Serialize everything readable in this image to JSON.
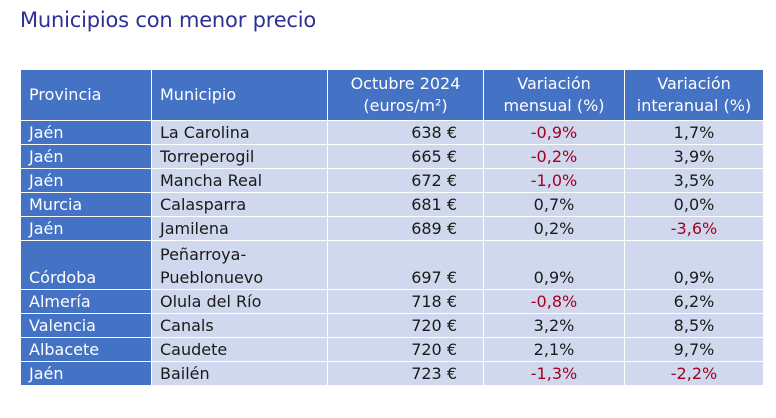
{
  "title": "Municipios con menor precio",
  "headers": {
    "provincia": "Provincia",
    "municipio": "Municipio",
    "precio_line1": "Octubre 2024",
    "precio_line2": "(euros/m²)",
    "mensual_line1": "Variación",
    "mensual_line2": "mensual (%)",
    "interanual_line1": "Variación",
    "interanual_line2": "interanual (%)"
  },
  "rows": [
    {
      "provincia": "Jaén",
      "municipio": "La Carolina",
      "precio": "638 €",
      "mensual": "-0,9%",
      "interanual": "1,7%"
    },
    {
      "provincia": "Jaén",
      "municipio": "Torreperogil",
      "precio": "665 €",
      "mensual": "-0,2%",
      "interanual": "3,9%"
    },
    {
      "provincia": "Jaén",
      "municipio": "Mancha Real",
      "precio": "672 €",
      "mensual": "-1,0%",
      "interanual": "3,5%"
    },
    {
      "provincia": "Murcia",
      "municipio": "Calasparra",
      "precio": "681 €",
      "mensual": "0,7%",
      "interanual": "0,0%"
    },
    {
      "provincia": "Jaén",
      "municipio": "Jamilena",
      "precio": "689 €",
      "mensual": "0,2%",
      "interanual": "-3,6%"
    },
    {
      "provincia": "Córdoba",
      "municipio_line1": "Peñarroya-",
      "municipio_line2": "Pueblonuevo",
      "precio": "697 €",
      "mensual": "0,9%",
      "interanual": "0,9%"
    },
    {
      "provincia": "Almería",
      "municipio": "Olula del Río",
      "precio": "718 €",
      "mensual": "-0,8%",
      "interanual": "6,2%"
    },
    {
      "provincia": "Valencia",
      "municipio": "Canals",
      "precio": "720 €",
      "mensual": "3,2%",
      "interanual": "8,5%"
    },
    {
      "provincia": "Albacete",
      "municipio": "Caudete",
      "precio": "720 €",
      "mensual": "2,1%",
      "interanual": "9,7%"
    },
    {
      "provincia": "Jaén",
      "municipio": "Bailén",
      "precio": "723 €",
      "mensual": "-1,3%",
      "interanual": "-2,2%"
    }
  ]
}
